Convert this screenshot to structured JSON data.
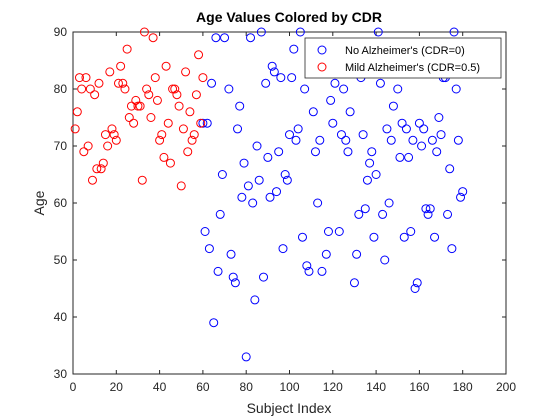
{
  "chart_data": {
    "type": "scatter",
    "title": "Age Values Colored by CDR",
    "xlabel": "Subject Index",
    "ylabel": "Age",
    "xlim": [
      0,
      200
    ],
    "ylim": [
      30,
      90
    ],
    "xticks": [
      0,
      20,
      40,
      60,
      80,
      100,
      120,
      140,
      160,
      180,
      200
    ],
    "yticks": [
      30,
      40,
      50,
      60,
      70,
      80,
      90
    ],
    "grid": false,
    "legend_position": "top-right",
    "series": [
      {
        "name": "No Alzheimer's (CDR=0)",
        "color": "#0000ff",
        "marker": "circle-open",
        "points": [
          [
            60,
            74
          ],
          [
            61,
            55
          ],
          [
            62,
            74
          ],
          [
            63,
            52
          ],
          [
            64,
            81
          ],
          [
            65,
            39
          ],
          [
            66,
            89
          ],
          [
            67,
            48
          ],
          [
            68,
            58
          ],
          [
            69,
            65
          ],
          [
            70,
            89
          ],
          [
            72,
            80
          ],
          [
            73,
            51
          ],
          [
            74,
            47
          ],
          [
            75,
            46
          ],
          [
            76,
            73
          ],
          [
            77,
            77
          ],
          [
            78,
            61
          ],
          [
            79,
            67
          ],
          [
            80,
            33
          ],
          [
            81,
            63
          ],
          [
            82,
            89
          ],
          [
            83,
            60
          ],
          [
            84,
            43
          ],
          [
            85,
            70
          ],
          [
            86,
            64
          ],
          [
            87,
            90
          ],
          [
            88,
            47
          ],
          [
            89,
            81
          ],
          [
            90,
            68
          ],
          [
            91,
            61
          ],
          [
            92,
            84
          ],
          [
            93,
            83
          ],
          [
            94,
            62
          ],
          [
            95,
            69
          ],
          [
            96,
            82
          ],
          [
            97,
            52
          ],
          [
            98,
            65
          ],
          [
            99,
            64
          ],
          [
            100,
            72
          ],
          [
            101,
            82
          ],
          [
            102,
            87
          ],
          [
            103,
            71
          ],
          [
            104,
            73
          ],
          [
            105,
            90
          ],
          [
            106,
            54
          ],
          [
            107,
            80
          ],
          [
            108,
            49
          ],
          [
            109,
            48
          ],
          [
            110,
            86
          ],
          [
            111,
            76
          ],
          [
            112,
            69
          ],
          [
            113,
            60
          ],
          [
            114,
            71
          ],
          [
            115,
            48
          ],
          [
            116,
            84
          ],
          [
            117,
            51
          ],
          [
            118,
            55
          ],
          [
            119,
            78
          ],
          [
            120,
            74
          ],
          [
            121,
            81
          ],
          [
            122,
            83
          ],
          [
            123,
            55
          ],
          [
            124,
            72
          ],
          [
            125,
            80
          ],
          [
            126,
            71
          ],
          [
            127,
            69
          ],
          [
            128,
            76
          ],
          [
            129,
            88
          ],
          [
            130,
            46
          ],
          [
            131,
            51
          ],
          [
            132,
            58
          ],
          [
            133,
            82
          ],
          [
            134,
            72
          ],
          [
            135,
            59
          ],
          [
            136,
            64
          ],
          [
            137,
            67
          ],
          [
            138,
            69
          ],
          [
            139,
            54
          ],
          [
            140,
            65
          ],
          [
            141,
            90
          ],
          [
            142,
            81
          ],
          [
            143,
            58
          ],
          [
            144,
            50
          ],
          [
            145,
            73
          ],
          [
            146,
            60
          ],
          [
            147,
            71
          ],
          [
            148,
            77
          ],
          [
            149,
            88
          ],
          [
            150,
            80
          ],
          [
            151,
            68
          ],
          [
            152,
            74
          ],
          [
            153,
            54
          ],
          [
            154,
            73
          ],
          [
            155,
            68
          ],
          [
            156,
            55
          ],
          [
            157,
            71
          ],
          [
            158,
            45
          ],
          [
            159,
            46
          ],
          [
            160,
            74
          ],
          [
            161,
            70
          ],
          [
            162,
            73
          ],
          [
            163,
            59
          ],
          [
            164,
            58
          ],
          [
            165,
            59
          ],
          [
            166,
            71
          ],
          [
            167,
            54
          ],
          [
            168,
            69
          ],
          [
            169,
            75
          ],
          [
            170,
            72
          ],
          [
            171,
            82
          ],
          [
            172,
            82
          ],
          [
            173,
            58
          ],
          [
            174,
            66
          ],
          [
            175,
            52
          ],
          [
            176,
            90
          ],
          [
            177,
            80
          ],
          [
            178,
            71
          ],
          [
            179,
            61
          ],
          [
            180,
            62
          ]
        ]
      },
      {
        "name": "Mild Alzheimer's (CDR=0.5)",
        "color": "#ff0000",
        "marker": "circle-open",
        "points": [
          [
            1,
            73
          ],
          [
            2,
            76
          ],
          [
            3,
            82
          ],
          [
            4,
            80
          ],
          [
            5,
            69
          ],
          [
            6,
            82
          ],
          [
            7,
            70
          ],
          [
            8,
            80
          ],
          [
            9,
            64
          ],
          [
            10,
            79
          ],
          [
            11,
            66
          ],
          [
            12,
            81
          ],
          [
            13,
            66
          ],
          [
            14,
            67
          ],
          [
            15,
            72
          ],
          [
            16,
            70
          ],
          [
            17,
            83
          ],
          [
            18,
            73
          ],
          [
            19,
            72
          ],
          [
            20,
            71
          ],
          [
            21,
            81
          ],
          [
            22,
            84
          ],
          [
            23,
            81
          ],
          [
            24,
            80
          ],
          [
            25,
            87
          ],
          [
            26,
            75
          ],
          [
            27,
            77
          ],
          [
            28,
            74
          ],
          [
            29,
            78
          ],
          [
            30,
            77
          ],
          [
            31,
            77
          ],
          [
            32,
            64
          ],
          [
            33,
            90
          ],
          [
            34,
            80
          ],
          [
            35,
            79
          ],
          [
            36,
            75
          ],
          [
            37,
            89
          ],
          [
            38,
            82
          ],
          [
            39,
            78
          ],
          [
            40,
            71
          ],
          [
            41,
            72
          ],
          [
            42,
            68
          ],
          [
            43,
            84
          ],
          [
            44,
            74
          ],
          [
            45,
            67
          ],
          [
            46,
            80
          ],
          [
            47,
            80
          ],
          [
            48,
            79
          ],
          [
            49,
            77
          ],
          [
            50,
            63
          ],
          [
            51,
            73
          ],
          [
            52,
            83
          ],
          [
            53,
            69
          ],
          [
            54,
            76
          ],
          [
            55,
            71
          ],
          [
            56,
            72
          ],
          [
            57,
            79
          ],
          [
            58,
            86
          ],
          [
            59,
            74
          ],
          [
            60,
            82
          ]
        ]
      }
    ]
  }
}
